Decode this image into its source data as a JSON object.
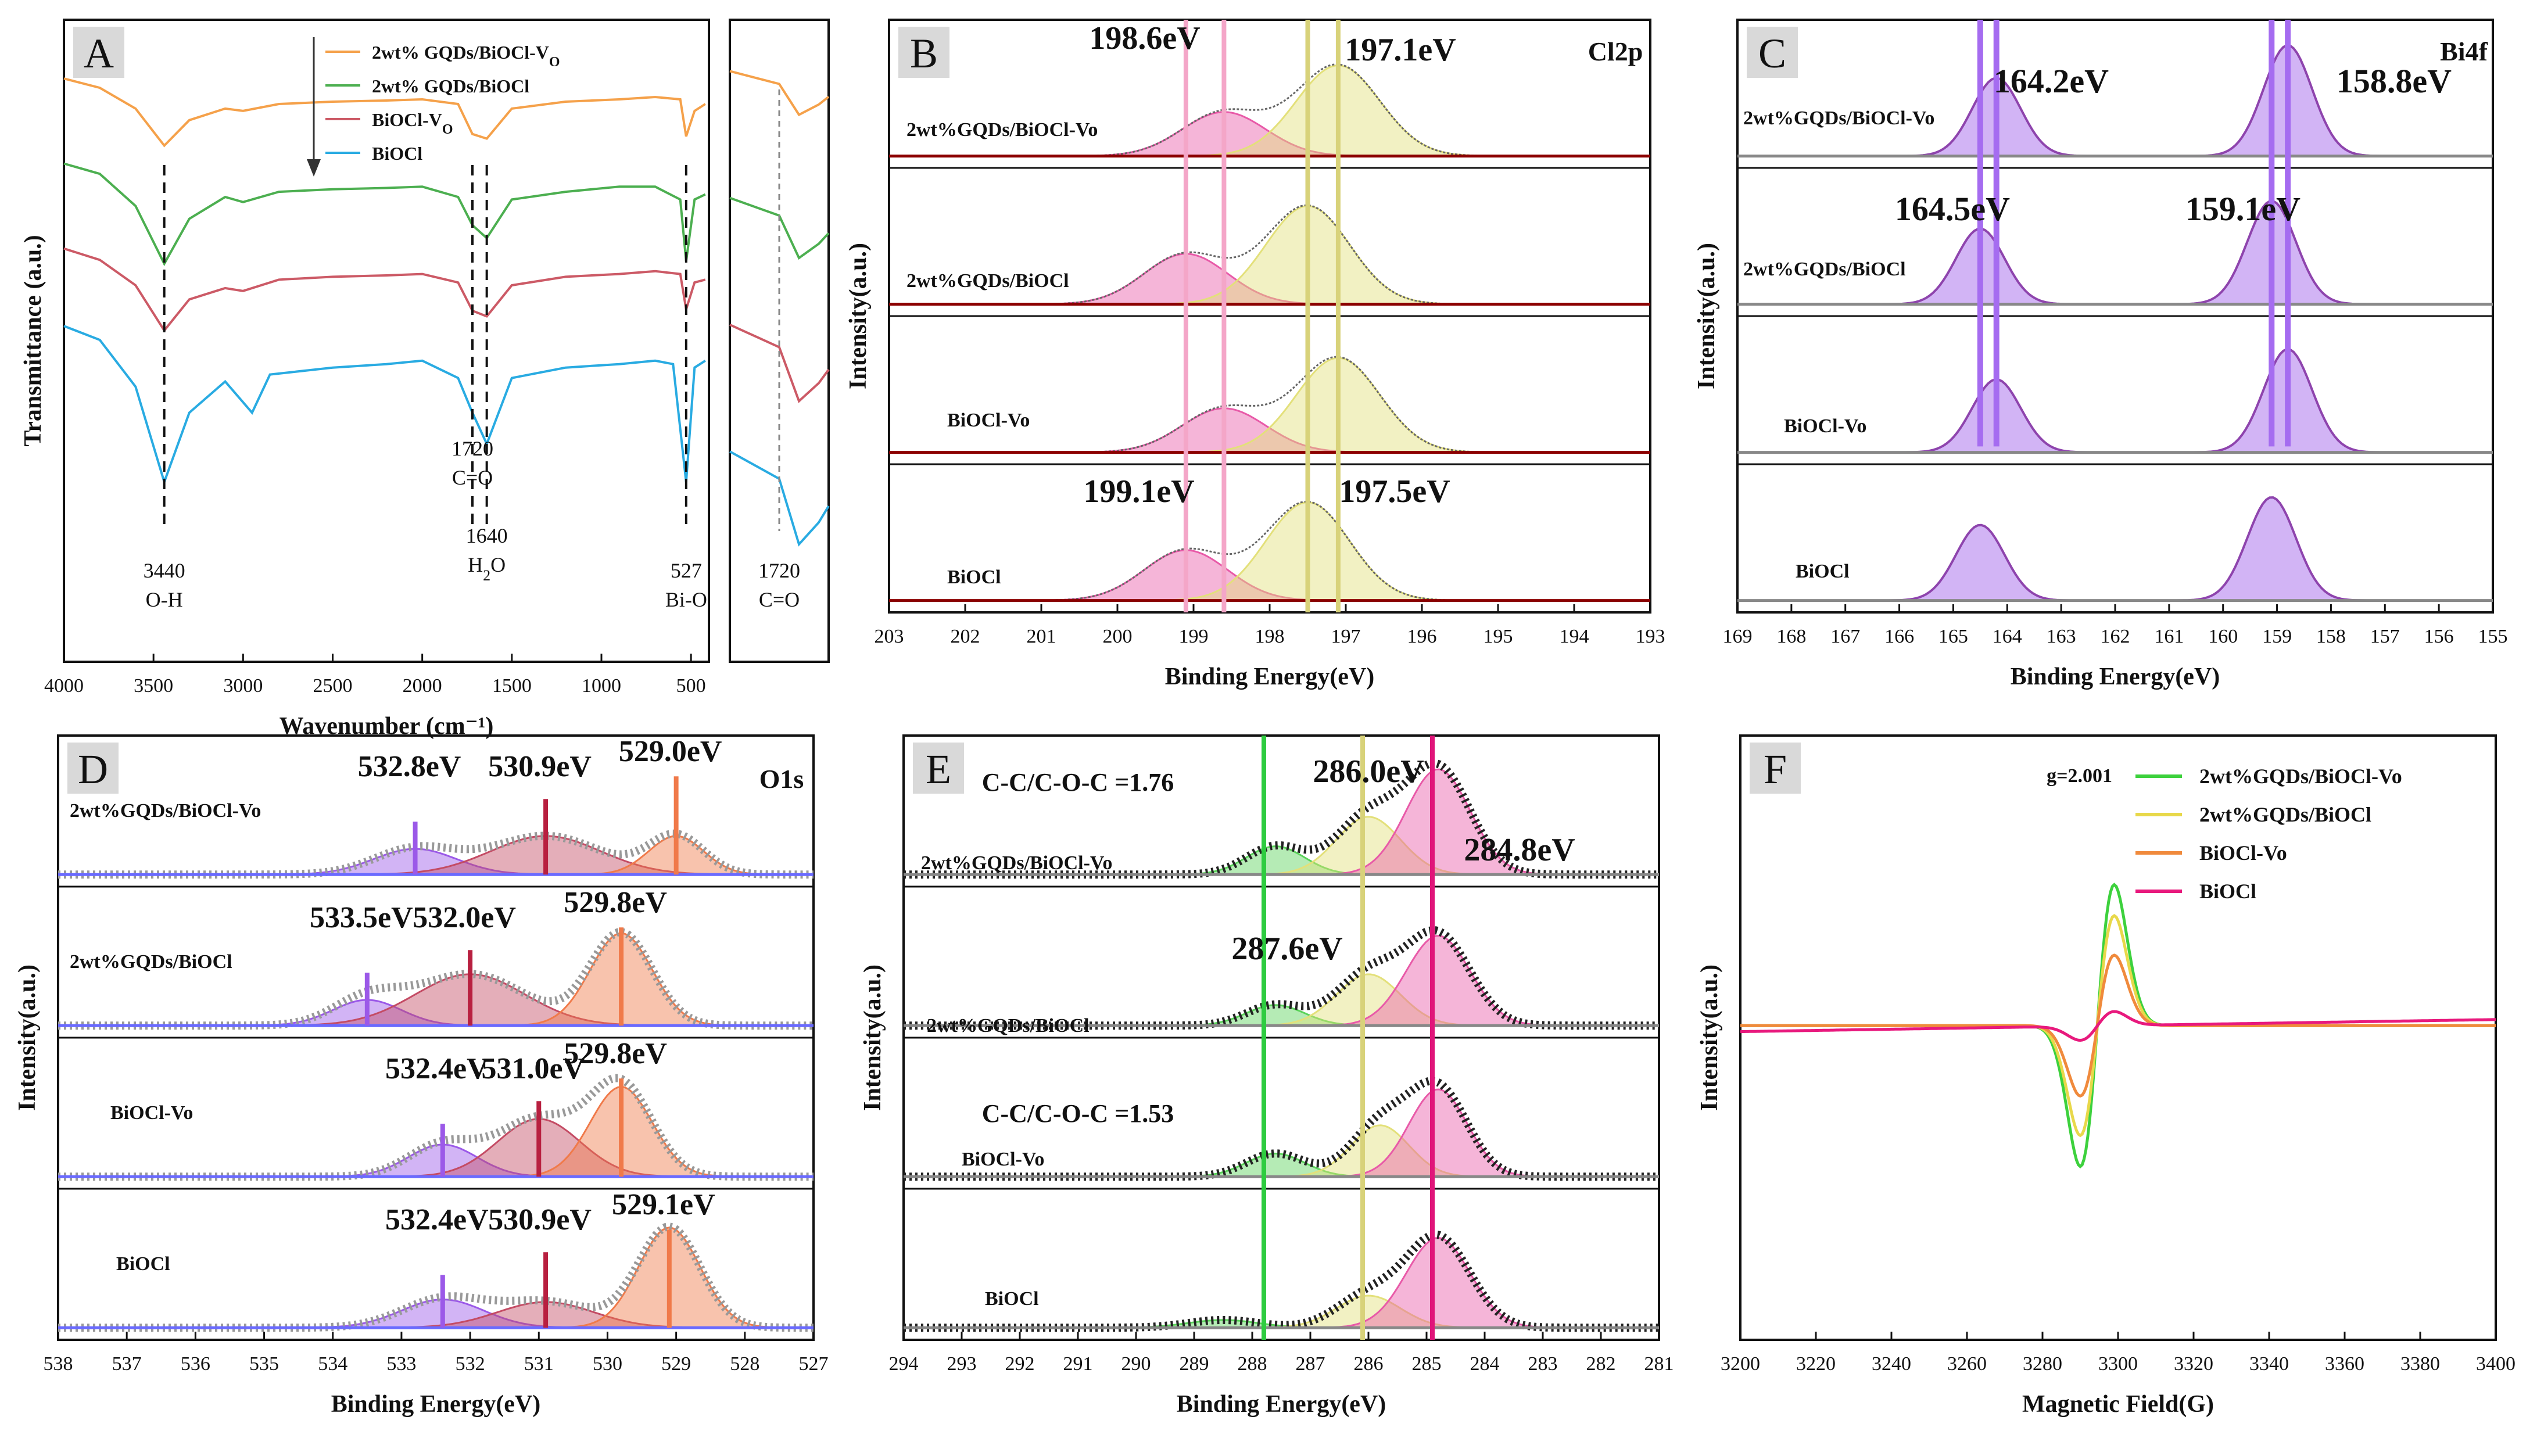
{
  "chart_data": [
    {
      "id": "A",
      "type": "line",
      "panel_label": "A",
      "xlabel": "Wavenumber (cm⁻¹)",
      "ylabel": "Transmittance (a.u.)",
      "xlim": [
        4000,
        400
      ],
      "x_ticks": [
        "4000",
        "3500",
        "3000",
        "2500",
        "2000",
        "1500",
        "1000",
        "500"
      ],
      "inset_xlim": [
        1800,
        1640
      ],
      "series": [
        {
          "name": "2wt% GQDs/BiOCl-VO",
          "label_main": "2wt% GQDs/BiOCl-V",
          "label_sub": "O",
          "color": "#f5a14a",
          "offset": 0.14,
          "scale": 0.62,
          "x": [
            4000,
            3800,
            3600,
            3440,
            3300,
            3100,
            3000,
            2800,
            2500,
            2200,
            2000,
            1800,
            1720,
            1640,
            1500,
            1200,
            900,
            700,
            560,
            527,
            480,
            420
          ],
          "y": [
            0.88,
            0.8,
            0.62,
            0.3,
            0.52,
            0.62,
            0.6,
            0.66,
            0.68,
            0.69,
            0.7,
            0.66,
            0.4,
            0.36,
            0.62,
            0.68,
            0.7,
            0.72,
            0.7,
            0.38,
            0.6,
            0.66
          ]
        },
        {
          "name": "2wt% GQDs/BiOCl",
          "label_main": "2wt% GQDs/BiOCl",
          "label_sub": "",
          "color": "#4caf50",
          "offset": 0.0,
          "scale": 0.62,
          "x": [
            4000,
            3800,
            3600,
            3440,
            3300,
            3100,
            3000,
            2800,
            2500,
            2200,
            2000,
            1800,
            1720,
            1640,
            1500,
            1200,
            900,
            700,
            560,
            527,
            480,
            420
          ],
          "y": [
            0.88,
            0.8,
            0.55,
            0.1,
            0.45,
            0.62,
            0.58,
            0.66,
            0.68,
            0.69,
            0.7,
            0.62,
            0.4,
            0.3,
            0.6,
            0.66,
            0.7,
            0.7,
            0.6,
            0.12,
            0.6,
            0.64
          ]
        },
        {
          "name": "BiOCl-VO",
          "label_main": "BiOCl-V",
          "label_sub": "O",
          "color": "#cc5a66",
          "offset": -0.14,
          "scale": 0.62,
          "x": [
            4000,
            3800,
            3600,
            3440,
            3300,
            3100,
            3000,
            2800,
            2500,
            2200,
            2000,
            1800,
            1720,
            1640,
            1500,
            1200,
            900,
            700,
            560,
            527,
            480,
            420
          ],
          "y": [
            0.88,
            0.8,
            0.62,
            0.3,
            0.52,
            0.6,
            0.58,
            0.66,
            0.68,
            0.69,
            0.7,
            0.64,
            0.44,
            0.4,
            0.62,
            0.68,
            0.7,
            0.72,
            0.7,
            0.45,
            0.64,
            0.66
          ]
        },
        {
          "name": "BiOCl",
          "label_main": "BiOCl",
          "label_sub": "",
          "color": "#29abe2",
          "offset": -0.3,
          "scale": 0.62,
          "x": [
            4000,
            3800,
            3600,
            3440,
            3300,
            3100,
            2950,
            2850,
            2500,
            2200,
            2000,
            1800,
            1720,
            1640,
            1500,
            1200,
            900,
            700,
            600,
            527,
            480,
            420
          ],
          "y": [
            0.9,
            0.82,
            0.55,
            0.0,
            0.4,
            0.58,
            0.4,
            0.62,
            0.66,
            0.68,
            0.7,
            0.6,
            0.4,
            0.22,
            0.6,
            0.66,
            0.68,
            0.7,
            0.68,
            0.0,
            0.66,
            0.7
          ]
        }
      ],
      "annotations": [
        {
          "x": 3440,
          "line1": "3440",
          "line2": "O-H"
        },
        {
          "x": 1720,
          "line1": "1720",
          "line2": "C=O"
        },
        {
          "x": 1640,
          "line1": "1640",
          "line2": "H",
          "line2_sub": "2",
          "line2_tail": "O"
        },
        {
          "x": 527,
          "line1": "527",
          "line2": "Bi-O"
        }
      ],
      "inset_label": {
        "line1": "1720",
        "line2": "C=O"
      }
    },
    {
      "id": "B",
      "type": "line",
      "panel_label": "B",
      "element_label": "Cl2p",
      "xlabel": "Binding Energy(eV)",
      "ylabel": "Intensity(a.u.)",
      "xlim": [
        203,
        193
      ],
      "x_ticks": [
        "203",
        "202",
        "201",
        "200",
        "199",
        "198",
        "197",
        "196",
        "195",
        "194",
        "193"
      ],
      "series": [
        {
          "name": "2wt%GQDs/BiOCl-Vo",
          "peaks": [
            {
              "center": 198.6,
              "height": 0.35,
              "width": 0.55
            },
            {
              "center": 197.1,
              "height": 0.72,
              "width": 0.55
            }
          ]
        },
        {
          "name": "2wt%GQDs/BiOCl",
          "peaks": [
            {
              "center": 199.1,
              "height": 0.4,
              "width": 0.55
            },
            {
              "center": 197.5,
              "height": 0.78,
              "width": 0.55
            }
          ]
        },
        {
          "name": "BiOCl-Vo",
          "peaks": [
            {
              "center": 198.6,
              "height": 0.35,
              "width": 0.55
            },
            {
              "center": 197.1,
              "height": 0.75,
              "width": 0.55
            }
          ]
        },
        {
          "name": "BiOCl",
          "peaks": [
            {
              "center": 199.1,
              "height": 0.4,
              "width": 0.55
            },
            {
              "center": 197.5,
              "height": 0.78,
              "width": 0.55
            }
          ]
        }
      ],
      "annotations": [
        "198.6eV",
        "197.1eV",
        "199.1eV",
        "197.5eV"
      ],
      "ref_lines": [
        {
          "x": 198.6,
          "color": "#f4a6c8"
        },
        {
          "x": 199.1,
          "color": "#f4a6c8"
        },
        {
          "x": 197.1,
          "color": "#d8d27a"
        },
        {
          "x": 197.5,
          "color": "#d8d27a"
        }
      ]
    },
    {
      "id": "C",
      "type": "line",
      "panel_label": "C",
      "element_label": "Bi4f",
      "xlabel": "Binding Energy(eV)",
      "ylabel": "Intensity(a.u.)",
      "xlim": [
        169,
        155
      ],
      "x_ticks": [
        "169",
        "168",
        "167",
        "166",
        "165",
        "164",
        "163",
        "162",
        "161",
        "160",
        "159",
        "158",
        "157",
        "156",
        "155"
      ],
      "series": [
        {
          "name": "2wt%GQDs/BiOCl-Vo",
          "peaks": [
            {
              "center": 164.2,
              "height": 0.62,
              "width": 0.45
            },
            {
              "center": 158.8,
              "height": 0.88,
              "width": 0.45
            }
          ]
        },
        {
          "name": "2wt%GQDs/BiOCl",
          "peaks": [
            {
              "center": 164.5,
              "height": 0.6,
              "width": 0.45
            },
            {
              "center": 159.1,
              "height": 0.82,
              "width": 0.45
            }
          ]
        },
        {
          "name": "BiOCl-Vo",
          "peaks": [
            {
              "center": 164.2,
              "height": 0.58,
              "width": 0.45
            },
            {
              "center": 158.8,
              "height": 0.82,
              "width": 0.45
            }
          ]
        },
        {
          "name": "BiOCl",
          "peaks": [
            {
              "center": 164.5,
              "height": 0.6,
              "width": 0.45
            },
            {
              "center": 159.1,
              "height": 0.82,
              "width": 0.45
            }
          ]
        }
      ],
      "annotations": [
        "164.2eV",
        "158.8eV",
        "164.5eV",
        "159.1eV"
      ],
      "ref_lines": [
        {
          "x": 164.2
        },
        {
          "x": 164.5
        },
        {
          "x": 158.8
        },
        {
          "x": 159.1
        }
      ]
    },
    {
      "id": "D",
      "type": "line",
      "panel_label": "D",
      "element_label": "O1s",
      "xlabel": "Binding Energy(eV)",
      "ylabel": "Intensity(a.u.)",
      "xlim": [
        538,
        527
      ],
      "x_ticks": [
        "538",
        "537",
        "536",
        "535",
        "534",
        "533",
        "532",
        "531",
        "530",
        "529",
        "528",
        "527"
      ],
      "series": [
        {
          "name": "2wt%GQDs/BiOCl-Vo",
          "peaks": [
            {
              "center": 532.8,
              "height": 0.2,
              "width": 0.6
            },
            {
              "center": 530.9,
              "height": 0.3,
              "width": 0.8
            },
            {
              "center": 529.0,
              "height": 0.3,
              "width": 0.4
            }
          ],
          "labels": [
            "532.8eV",
            "530.9eV",
            "529.0eV"
          ]
        },
        {
          "name": "2wt%GQDs/BiOCl",
          "peaks": [
            {
              "center": 533.5,
              "height": 0.2,
              "width": 0.5
            },
            {
              "center": 532.0,
              "height": 0.4,
              "width": 0.8
            },
            {
              "center": 529.8,
              "height": 0.72,
              "width": 0.45
            }
          ],
          "labels": [
            "533.5eV",
            "532.0eV",
            "529.8eV"
          ]
        },
        {
          "name": "BiOCl-Vo",
          "peaks": [
            {
              "center": 532.4,
              "height": 0.25,
              "width": 0.5
            },
            {
              "center": 531.0,
              "height": 0.45,
              "width": 0.6
            },
            {
              "center": 529.8,
              "height": 0.7,
              "width": 0.45
            }
          ],
          "labels": [
            "532.4eV",
            "531.0eV",
            "529.8eV"
          ]
        },
        {
          "name": "BiOCl",
          "peaks": [
            {
              "center": 532.4,
              "height": 0.22,
              "width": 0.6
            },
            {
              "center": 530.9,
              "height": 0.2,
              "width": 0.7
            },
            {
              "center": 529.1,
              "height": 0.78,
              "width": 0.45
            }
          ],
          "labels": [
            "532.4eV",
            "530.9eV",
            "529.1eV"
          ]
        }
      ]
    },
    {
      "id": "E",
      "type": "line",
      "panel_label": "E",
      "xlabel": "Binding Energy(eV)",
      "ylabel": "Intensity(a.u.)",
      "xlim": [
        294,
        281
      ],
      "x_ticks": [
        "294",
        "293",
        "292",
        "291",
        "290",
        "289",
        "288",
        "287",
        "286",
        "285",
        "284",
        "283",
        "282",
        "281"
      ],
      "series": [
        {
          "name": "2wt%GQDs/BiOCl-Vo",
          "peaks": [
            {
              "center": 287.6,
              "height": 0.22,
              "width": 0.5
            },
            {
              "center": 286.0,
              "height": 0.45,
              "width": 0.55
            },
            {
              "center": 284.8,
              "height": 0.82,
              "width": 0.55
            }
          ]
        },
        {
          "name": "2wt%GQDs/BiOCl",
          "peaks": [
            {
              "center": 287.6,
              "height": 0.16,
              "width": 0.5
            },
            {
              "center": 286.0,
              "height": 0.4,
              "width": 0.55
            },
            {
              "center": 284.8,
              "height": 0.7,
              "width": 0.55
            }
          ]
        },
        {
          "name": "BiOCl-Vo",
          "peaks": [
            {
              "center": 287.6,
              "height": 0.18,
              "width": 0.5
            },
            {
              "center": 285.8,
              "height": 0.4,
              "width": 0.5
            },
            {
              "center": 284.8,
              "height": 0.68,
              "width": 0.5
            }
          ]
        },
        {
          "name": "BiOCl",
          "peaks": [
            {
              "center": 288.5,
              "height": 0.06,
              "width": 0.6
            },
            {
              "center": 286.0,
              "height": 0.25,
              "width": 0.55
            },
            {
              "center": 284.8,
              "height": 0.7,
              "width": 0.55
            }
          ]
        }
      ],
      "annotations": [
        "C-C/C-O-C =1.76",
        "286.0eV",
        "284.8eV",
        "287.6eV",
        "C-C/C-O-C =1.53"
      ],
      "ref_lines": [
        {
          "x": 287.8,
          "color": "#2ecc40"
        },
        {
          "x": 286.1,
          "color": "#d8d27a"
        },
        {
          "x": 284.9,
          "color": "#e0157a"
        }
      ]
    },
    {
      "id": "F",
      "type": "line",
      "panel_label": "F",
      "xlabel": "Magnetic Field(G)",
      "ylabel": "Intensity(a.u.)",
      "xlim": [
        3200,
        3400
      ],
      "x_ticks": [
        "3200",
        "3220",
        "3240",
        "3260",
        "3280",
        "3300",
        "3320",
        "3340",
        "3360",
        "3380",
        "3400"
      ],
      "annotation": "g=2.001",
      "legend_position": "top-right",
      "series": [
        {
          "name": "2wt%GQDs/BiOCl-Vo",
          "color": "#3dd13d",
          "amplitude": 1.0
        },
        {
          "name": "2wt%GQDs/BiOCl",
          "color": "#e8d84a",
          "amplitude": 0.78
        },
        {
          "name": "BiOCl-Vo",
          "color": "#f08a3c",
          "amplitude": 0.5
        },
        {
          "name": "BiOCl",
          "color": "#e8197d",
          "amplitude": 0.1
        }
      ]
    }
  ]
}
